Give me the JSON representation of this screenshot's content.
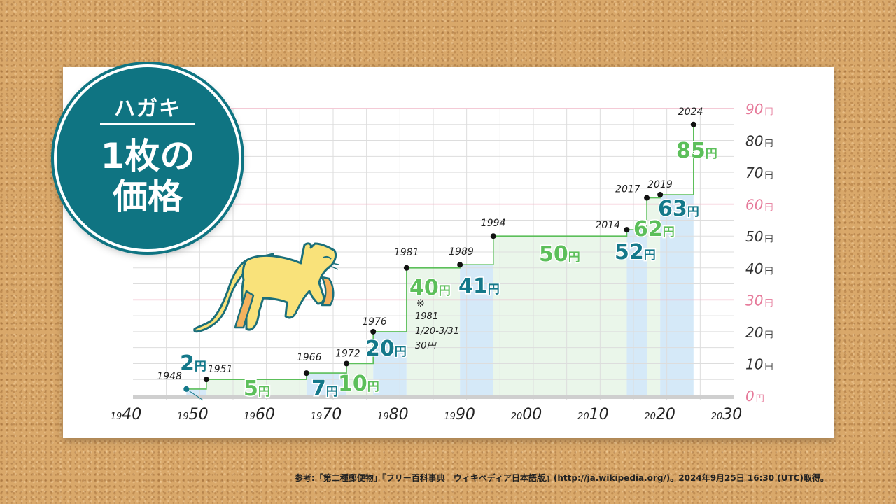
{
  "badge": {
    "title": "ハガキ",
    "subtitle_line1": "1枚の",
    "subtitle_line2": "価格"
  },
  "source_note": "参考:「第二種郵便物」『フリー百科事典　ウィキペディア日本語版』(http://ja.wikipedia.org/)。2024年9月25日 16:30 (UTC)取得。",
  "chart_data": {
    "type": "step",
    "title": "ハガキ1枚の価格",
    "xlim": [
      1940,
      2030
    ],
    "ylim": [
      0,
      90
    ],
    "x_ticks": [
      1940,
      1950,
      1960,
      1970,
      1980,
      1990,
      2000,
      2010,
      2020,
      2030
    ],
    "y_ticks": [
      0,
      10,
      20,
      30,
      40,
      50,
      60,
      70,
      80,
      90
    ],
    "y_unit": "円",
    "grid": true,
    "points": [
      {
        "year": 1948,
        "price": 2,
        "label": "2円"
      },
      {
        "year": 1951,
        "price": 5,
        "label": "5円"
      },
      {
        "year": 1966,
        "price": 7,
        "label": "7円"
      },
      {
        "year": 1972,
        "price": 10,
        "label": "10円"
      },
      {
        "year": 1976,
        "price": 20,
        "label": "20円"
      },
      {
        "year": 1981,
        "price": 40,
        "label": "40円"
      },
      {
        "year": 1989,
        "price": 41,
        "label": "41円"
      },
      {
        "year": 1994,
        "price": 50,
        "label": "50円"
      },
      {
        "year": 2014,
        "price": 52,
        "label": "52円"
      },
      {
        "year": 2017,
        "price": 62,
        "label": "62円"
      },
      {
        "year": 2019,
        "price": 63,
        "label": "63円"
      },
      {
        "year": 2024,
        "price": 85,
        "label": "85円"
      }
    ],
    "annotation": {
      "mark": "※",
      "year_text": "1981",
      "range_text": "1/20-3/31",
      "price_text": "30円"
    },
    "colors": {
      "green": "#5cbf5a",
      "teal": "#14788a",
      "pink_grid": "#f0b8c8",
      "grid": "#dddddd",
      "bar_blue": "#d5e9f8",
      "bar_green": "#eaf6ea"
    }
  }
}
